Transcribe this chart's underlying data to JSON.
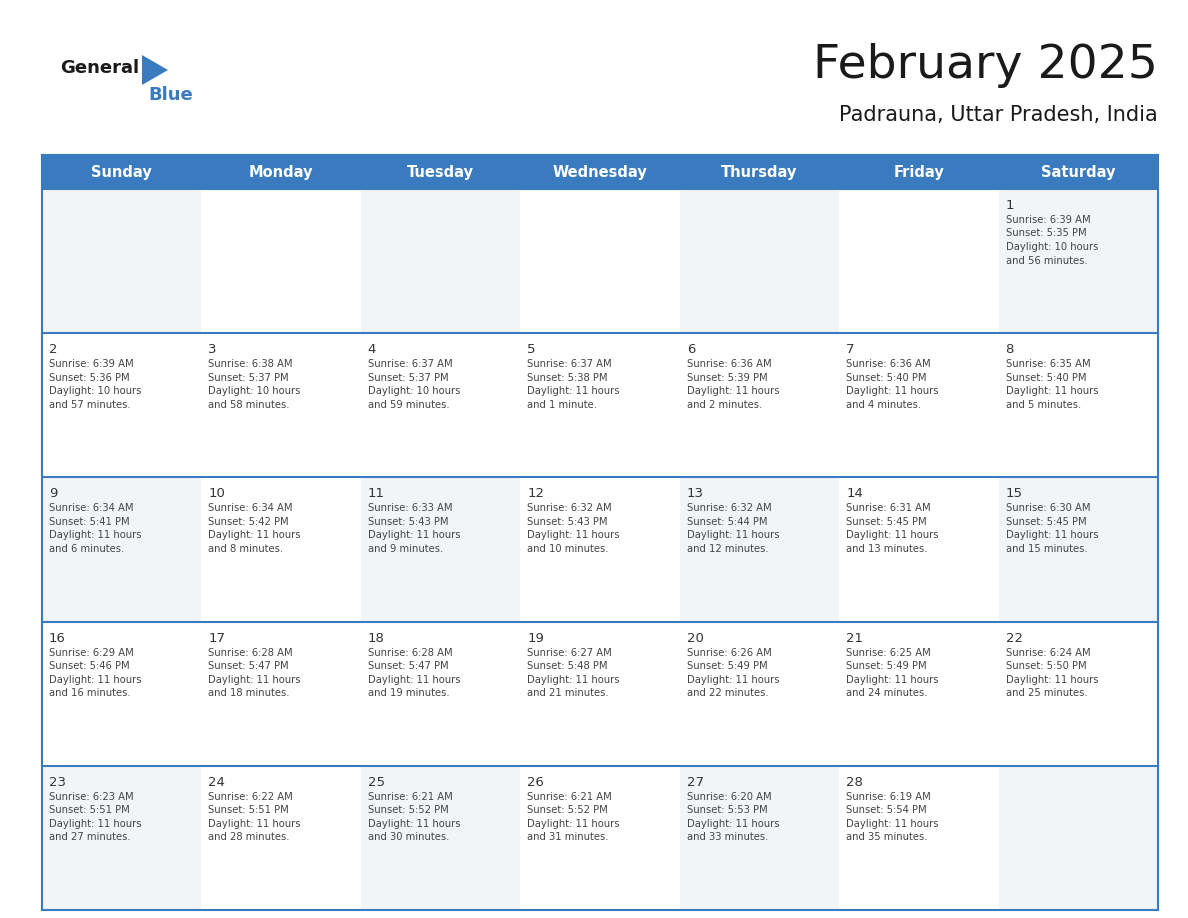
{
  "title": "February 2025",
  "subtitle": "Padrauna, Uttar Pradesh, India",
  "header_bg": "#3a7bbf",
  "header_text_color": "#ffffff",
  "days_of_week": [
    "Sunday",
    "Monday",
    "Tuesday",
    "Wednesday",
    "Thursday",
    "Friday",
    "Saturday"
  ],
  "grid_line_color": "#3a7bbf",
  "day_number_color": "#333333",
  "text_color": "#444444",
  "row_bg": [
    "#f2f5f8",
    "#ffffff",
    "#f2f5f8",
    "#ffffff",
    "#f2f5f8"
  ],
  "calendar": [
    [
      null,
      null,
      null,
      null,
      null,
      null,
      {
        "day": 1,
        "sunrise": "6:39 AM",
        "sunset": "5:35 PM",
        "daylight_line1": "Daylight: 10 hours",
        "daylight_line2": "and 56 minutes."
      }
    ],
    [
      {
        "day": 2,
        "sunrise": "6:39 AM",
        "sunset": "5:36 PM",
        "daylight_line1": "Daylight: 10 hours",
        "daylight_line2": "and 57 minutes."
      },
      {
        "day": 3,
        "sunrise": "6:38 AM",
        "sunset": "5:37 PM",
        "daylight_line1": "Daylight: 10 hours",
        "daylight_line2": "and 58 minutes."
      },
      {
        "day": 4,
        "sunrise": "6:37 AM",
        "sunset": "5:37 PM",
        "daylight_line1": "Daylight: 10 hours",
        "daylight_line2": "and 59 minutes."
      },
      {
        "day": 5,
        "sunrise": "6:37 AM",
        "sunset": "5:38 PM",
        "daylight_line1": "Daylight: 11 hours",
        "daylight_line2": "and 1 minute."
      },
      {
        "day": 6,
        "sunrise": "6:36 AM",
        "sunset": "5:39 PM",
        "daylight_line1": "Daylight: 11 hours",
        "daylight_line2": "and 2 minutes."
      },
      {
        "day": 7,
        "sunrise": "6:36 AM",
        "sunset": "5:40 PM",
        "daylight_line1": "Daylight: 11 hours",
        "daylight_line2": "and 4 minutes."
      },
      {
        "day": 8,
        "sunrise": "6:35 AM",
        "sunset": "5:40 PM",
        "daylight_line1": "Daylight: 11 hours",
        "daylight_line2": "and 5 minutes."
      }
    ],
    [
      {
        "day": 9,
        "sunrise": "6:34 AM",
        "sunset": "5:41 PM",
        "daylight_line1": "Daylight: 11 hours",
        "daylight_line2": "and 6 minutes."
      },
      {
        "day": 10,
        "sunrise": "6:34 AM",
        "sunset": "5:42 PM",
        "daylight_line1": "Daylight: 11 hours",
        "daylight_line2": "and 8 minutes."
      },
      {
        "day": 11,
        "sunrise": "6:33 AM",
        "sunset": "5:43 PM",
        "daylight_line1": "Daylight: 11 hours",
        "daylight_line2": "and 9 minutes."
      },
      {
        "day": 12,
        "sunrise": "6:32 AM",
        "sunset": "5:43 PM",
        "daylight_line1": "Daylight: 11 hours",
        "daylight_line2": "and 10 minutes."
      },
      {
        "day": 13,
        "sunrise": "6:32 AM",
        "sunset": "5:44 PM",
        "daylight_line1": "Daylight: 11 hours",
        "daylight_line2": "and 12 minutes."
      },
      {
        "day": 14,
        "sunrise": "6:31 AM",
        "sunset": "5:45 PM",
        "daylight_line1": "Daylight: 11 hours",
        "daylight_line2": "and 13 minutes."
      },
      {
        "day": 15,
        "sunrise": "6:30 AM",
        "sunset": "5:45 PM",
        "daylight_line1": "Daylight: 11 hours",
        "daylight_line2": "and 15 minutes."
      }
    ],
    [
      {
        "day": 16,
        "sunrise": "6:29 AM",
        "sunset": "5:46 PM",
        "daylight_line1": "Daylight: 11 hours",
        "daylight_line2": "and 16 minutes."
      },
      {
        "day": 17,
        "sunrise": "6:28 AM",
        "sunset": "5:47 PM",
        "daylight_line1": "Daylight: 11 hours",
        "daylight_line2": "and 18 minutes."
      },
      {
        "day": 18,
        "sunrise": "6:28 AM",
        "sunset": "5:47 PM",
        "daylight_line1": "Daylight: 11 hours",
        "daylight_line2": "and 19 minutes."
      },
      {
        "day": 19,
        "sunrise": "6:27 AM",
        "sunset": "5:48 PM",
        "daylight_line1": "Daylight: 11 hours",
        "daylight_line2": "and 21 minutes."
      },
      {
        "day": 20,
        "sunrise": "6:26 AM",
        "sunset": "5:49 PM",
        "daylight_line1": "Daylight: 11 hours",
        "daylight_line2": "and 22 minutes."
      },
      {
        "day": 21,
        "sunrise": "6:25 AM",
        "sunset": "5:49 PM",
        "daylight_line1": "Daylight: 11 hours",
        "daylight_line2": "and 24 minutes."
      },
      {
        "day": 22,
        "sunrise": "6:24 AM",
        "sunset": "5:50 PM",
        "daylight_line1": "Daylight: 11 hours",
        "daylight_line2": "and 25 minutes."
      }
    ],
    [
      {
        "day": 23,
        "sunrise": "6:23 AM",
        "sunset": "5:51 PM",
        "daylight_line1": "Daylight: 11 hours",
        "daylight_line2": "and 27 minutes."
      },
      {
        "day": 24,
        "sunrise": "6:22 AM",
        "sunset": "5:51 PM",
        "daylight_line1": "Daylight: 11 hours",
        "daylight_line2": "and 28 minutes."
      },
      {
        "day": 25,
        "sunrise": "6:21 AM",
        "sunset": "5:52 PM",
        "daylight_line1": "Daylight: 11 hours",
        "daylight_line2": "and 30 minutes."
      },
      {
        "day": 26,
        "sunrise": "6:21 AM",
        "sunset": "5:52 PM",
        "daylight_line1": "Daylight: 11 hours",
        "daylight_line2": "and 31 minutes."
      },
      {
        "day": 27,
        "sunrise": "6:20 AM",
        "sunset": "5:53 PM",
        "daylight_line1": "Daylight: 11 hours",
        "daylight_line2": "and 33 minutes."
      },
      {
        "day": 28,
        "sunrise": "6:19 AM",
        "sunset": "5:54 PM",
        "daylight_line1": "Daylight: 11 hours",
        "daylight_line2": "and 35 minutes."
      },
      null
    ]
  ]
}
